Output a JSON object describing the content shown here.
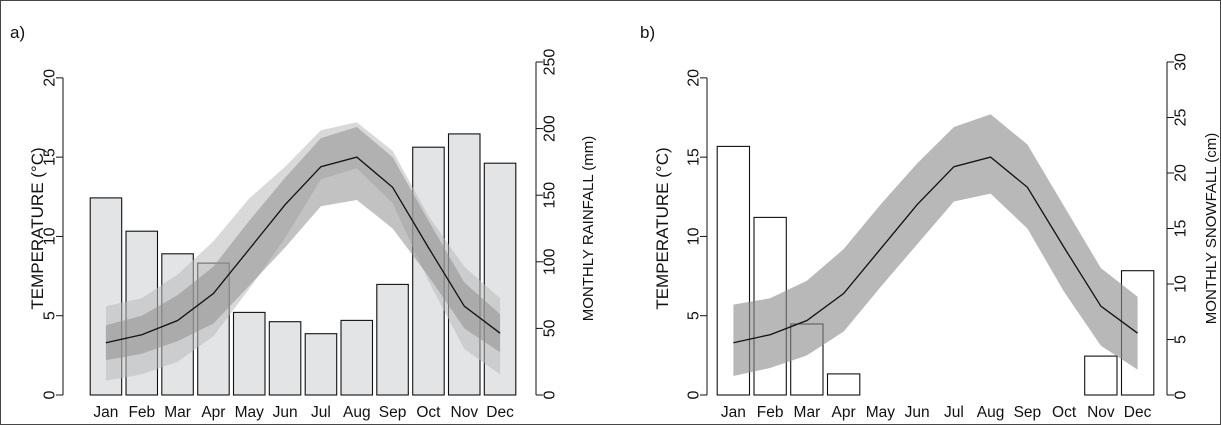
{
  "chart_data": [
    {
      "panel_label": "a)",
      "type": "bar",
      "categories": [
        "Jan",
        "Feb",
        "Mar",
        "Apr",
        "May",
        "Jun",
        "Jul",
        "Aug",
        "Sep",
        "Oct",
        "Nov",
        "Dec"
      ],
      "ylabel": "TEMPERATURE (°C)",
      "ylim": [
        0,
        21
      ],
      "yticks": [
        "0",
        "5",
        "10",
        "15",
        "20"
      ],
      "y2label": "MONTHLY RAINFALL (mm)",
      "y2lim": [
        0,
        250
      ],
      "y2ticks": [
        "0",
        "50",
        "100",
        "150",
        "200",
        "250"
      ],
      "bar_fill": "#e2e4e6",
      "bars": [
        148,
        123,
        106,
        99,
        62,
        55,
        46,
        56,
        83,
        186,
        196,
        174
      ],
      "temperature_mean": [
        3.3,
        3.8,
        4.7,
        6.4,
        9.2,
        12.0,
        14.4,
        15.0,
        13.1,
        9.3,
        5.6,
        3.9
      ],
      "band_outer_low": [
        0.9,
        1.3,
        2.1,
        3.7,
        6.7,
        9.9,
        13.6,
        14.3,
        12.1,
        7.2,
        2.9,
        1.3
      ],
      "band_outer_high": [
        5.6,
        6.1,
        7.6,
        9.7,
        12.4,
        14.4,
        16.7,
        17.2,
        15.4,
        11.3,
        8.1,
        6.1
      ],
      "band_inner_low": [
        2.2,
        2.6,
        3.4,
        4.5,
        6.9,
        9.3,
        11.9,
        12.3,
        10.5,
        7.5,
        4.2,
        2.7
      ],
      "band_inner_high": [
        4.4,
        5.0,
        6.3,
        8.1,
        11.0,
        13.7,
        16.2,
        16.9,
        15.0,
        11.0,
        7.1,
        5.1
      ]
    },
    {
      "panel_label": "b)",
      "type": "bar",
      "categories": [
        "Jan",
        "Feb",
        "Mar",
        "Apr",
        "May",
        "Jun",
        "Jul",
        "Aug",
        "Sep",
        "Oct",
        "Nov",
        "Dec"
      ],
      "ylabel": "TEMPERATURE (°C)",
      "ylim": [
        0,
        21
      ],
      "yticks": [
        "0",
        "5",
        "10",
        "15",
        "20"
      ],
      "y2label": "MONTHLY SNOWFALL (cm)",
      "y2lim": [
        0,
        30
      ],
      "y2ticks": [
        "0",
        "5",
        "10",
        "15",
        "20",
        "25",
        "30"
      ],
      "bar_fill": "#ffffff",
      "bars": [
        22.4,
        16.0,
        6.4,
        1.9,
        0,
        0,
        0,
        0,
        0,
        0,
        3.5,
        11.2
      ],
      "temperature_mean": [
        3.3,
        3.8,
        4.7,
        6.4,
        9.2,
        12.0,
        14.4,
        15.0,
        13.1,
        9.3,
        5.6,
        3.9
      ],
      "band_low": [
        1.2,
        1.7,
        2.5,
        4.0,
        6.8,
        9.5,
        12.2,
        12.7,
        10.5,
        6.5,
        3.1,
        1.6
      ],
      "band_high": [
        5.7,
        6.1,
        7.2,
        9.2,
        12.0,
        14.6,
        16.9,
        17.7,
        15.8,
        11.9,
        8.0,
        6.2
      ]
    }
  ]
}
